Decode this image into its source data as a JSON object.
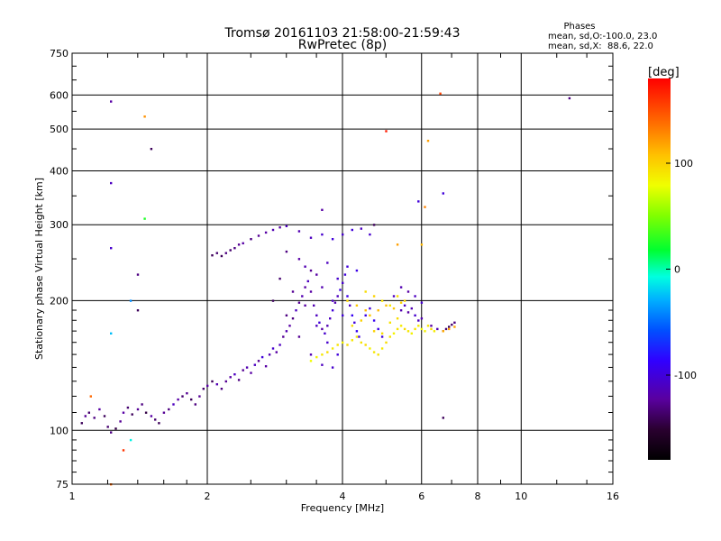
{
  "chart_data": {
    "type": "scatter",
    "title": "Tromsø 20161103 21:58:00-21:59:43",
    "subtitle": "RwPretec (8p)",
    "xlabel": "Frequency [MHz]",
    "ylabel": "Stationary phase Virtual Height [km]",
    "x_scale": "log",
    "y_scale": "log",
    "xlim": [
      1,
      16
    ],
    "ylim": [
      75,
      750
    ],
    "x_ticks": [
      1,
      2,
      4,
      6,
      8,
      10,
      16
    ],
    "y_ticks": [
      75,
      100,
      200,
      300,
      400,
      500,
      600,
      750
    ],
    "grid": true,
    "phases": {
      "header": "Phases",
      "line1": "mean, sd,O:-100.0, 23.0",
      "line2": "mean, sd,X:  88.6, 22.0"
    },
    "colorbar": {
      "label": "[deg]",
      "range": [
        -180,
        180
      ],
      "ticks": [
        100,
        0,
        -100
      ],
      "colormap": "rainbow (black-purple-blue-cyan-green-yellow-red)"
    },
    "series": [
      {
        "trace": "O-mode (blue/purple)",
        "points": [
          [
            1.05,
            104,
            -140
          ],
          [
            1.07,
            108,
            -125
          ],
          [
            1.09,
            110,
            -135
          ],
          [
            1.12,
            107,
            -130
          ],
          [
            1.15,
            112,
            -120
          ],
          [
            1.18,
            108,
            -140
          ],
          [
            1.2,
            102,
            -135
          ],
          [
            1.22,
            99,
            -130
          ],
          [
            1.25,
            101,
            -145
          ],
          [
            1.28,
            105,
            -125
          ],
          [
            1.3,
            110,
            -120
          ],
          [
            1.33,
            113,
            -135
          ],
          [
            1.36,
            109,
            -140
          ],
          [
            1.4,
            112,
            -125
          ],
          [
            1.43,
            115,
            -130
          ],
          [
            1.46,
            110,
            -145
          ],
          [
            1.5,
            108,
            -120
          ],
          [
            1.53,
            106,
            -135
          ],
          [
            1.56,
            104,
            -140
          ],
          [
            1.6,
            110,
            -125
          ],
          [
            1.64,
            112,
            -130
          ],
          [
            1.68,
            115,
            -110
          ],
          [
            1.72,
            118,
            -120
          ],
          [
            1.76,
            120,
            -135
          ],
          [
            1.8,
            122,
            -125
          ],
          [
            1.84,
            118,
            -140
          ],
          [
            1.88,
            115,
            -130
          ],
          [
            1.92,
            120,
            -125
          ],
          [
            1.96,
            125,
            -135
          ],
          [
            2.0,
            127,
            -120
          ],
          [
            2.05,
            130,
            -140
          ],
          [
            2.1,
            128,
            -115
          ],
          [
            2.15,
            125,
            -130
          ],
          [
            2.2,
            130,
            -125
          ],
          [
            2.25,
            133,
            -120
          ],
          [
            2.3,
            135,
            -110
          ],
          [
            2.35,
            131,
            -130
          ],
          [
            2.4,
            138,
            -125
          ],
          [
            2.45,
            140,
            -115
          ],
          [
            2.5,
            136,
            -120
          ],
          [
            2.55,
            142,
            -110
          ],
          [
            2.6,
            145,
            -125
          ],
          [
            2.65,
            148,
            -100
          ],
          [
            2.7,
            141,
            -120
          ],
          [
            2.75,
            150,
            -115
          ],
          [
            2.8,
            155,
            -105
          ],
          [
            2.85,
            152,
            -120
          ],
          [
            2.9,
            158,
            -110
          ],
          [
            2.95,
            165,
            -125
          ],
          [
            3.0,
            170,
            -115
          ],
          [
            3.05,
            175,
            -120
          ],
          [
            3.1,
            182,
            -130
          ],
          [
            3.15,
            190,
            -110
          ],
          [
            3.2,
            198,
            -125
          ],
          [
            3.25,
            205,
            -115
          ],
          [
            3.3,
            215,
            -120
          ],
          [
            3.35,
            222,
            -110
          ],
          [
            3.4,
            210,
            -120
          ],
          [
            3.45,
            195,
            -115
          ],
          [
            3.5,
            185,
            -110
          ],
          [
            3.55,
            178,
            -100
          ],
          [
            3.6,
            172,
            -120
          ],
          [
            3.65,
            168,
            -105
          ],
          [
            3.7,
            175,
            -115
          ],
          [
            3.75,
            182,
            -110
          ],
          [
            3.8,
            190,
            -100
          ],
          [
            3.85,
            198,
            -115
          ],
          [
            3.9,
            205,
            -110
          ],
          [
            3.95,
            212,
            -95
          ],
          [
            4.0,
            220,
            -105
          ],
          [
            4.05,
            230,
            -100
          ],
          [
            4.1,
            205,
            -95
          ],
          [
            4.15,
            195,
            -110
          ],
          [
            4.2,
            185,
            -90
          ],
          [
            4.25,
            178,
            -100
          ],
          [
            4.3,
            170,
            -90
          ],
          [
            4.35,
            165,
            -100
          ],
          [
            3.3,
            240,
            -115
          ],
          [
            3.5,
            230,
            -120
          ],
          [
            3.7,
            245,
            -110
          ],
          [
            3.9,
            225,
            -105
          ],
          [
            4.1,
            240,
            -100
          ],
          [
            4.3,
            235,
            -95
          ],
          [
            3.0,
            260,
            -130
          ],
          [
            3.2,
            250,
            -120
          ],
          [
            3.4,
            235,
            -125
          ],
          [
            3.6,
            215,
            -115
          ],
          [
            3.8,
            200,
            -110
          ],
          [
            4.0,
            185,
            -100
          ],
          [
            2.9,
            225,
            -135
          ],
          [
            3.1,
            210,
            -125
          ],
          [
            3.3,
            195,
            -120
          ],
          [
            3.5,
            175,
            -110
          ],
          [
            3.7,
            160,
            -105
          ],
          [
            3.9,
            150,
            -100
          ],
          [
            2.8,
            200,
            -140
          ],
          [
            3.0,
            185,
            -130
          ],
          [
            3.2,
            165,
            -125
          ],
          [
            3.4,
            150,
            -115
          ],
          [
            3.6,
            142,
            -110
          ],
          [
            3.8,
            140,
            -105
          ],
          [
            2.05,
            255,
            -140
          ],
          [
            2.1,
            258,
            -135
          ],
          [
            2.15,
            254,
            -140
          ],
          [
            2.2,
            258,
            -130
          ],
          [
            2.25,
            262,
            -135
          ],
          [
            2.3,
            265,
            -130
          ],
          [
            2.35,
            270,
            -125
          ],
          [
            2.4,
            272,
            -120
          ],
          [
            2.5,
            278,
            -130
          ],
          [
            2.6,
            283,
            -125
          ],
          [
            2.7,
            288,
            -120
          ],
          [
            2.8,
            292,
            -115
          ],
          [
            2.9,
            296,
            -120
          ],
          [
            3.0,
            298,
            -110
          ],
          [
            3.2,
            290,
            -115
          ],
          [
            3.4,
            280,
            -110
          ],
          [
            3.6,
            285,
            -105
          ],
          [
            3.8,
            278,
            -100
          ],
          [
            4.0,
            285,
            -105
          ],
          [
            4.2,
            292,
            -100
          ],
          [
            4.4,
            294,
            -110
          ],
          [
            4.6,
            285,
            -105
          ],
          [
            4.5,
            185,
            -95
          ],
          [
            4.6,
            192,
            -100
          ],
          [
            4.7,
            180,
            -90
          ],
          [
            4.8,
            172,
            -95
          ],
          [
            4.9,
            165,
            -100
          ],
          [
            5.4,
            190,
            -115
          ],
          [
            5.5,
            195,
            -110
          ],
          [
            5.6,
            188,
            -120
          ],
          [
            5.7,
            192,
            -115
          ],
          [
            5.8,
            185,
            -105
          ],
          [
            5.9,
            180,
            -110
          ],
          [
            6.0,
            182,
            -115
          ],
          [
            5.2,
            205,
            -110
          ],
          [
            5.4,
            215,
            -115
          ],
          [
            5.6,
            210,
            -120
          ],
          [
            5.8,
            205,
            -110
          ],
          [
            6.0,
            198,
            -105
          ],
          [
            6.3,
            175,
            -120
          ],
          [
            6.5,
            172,
            -115
          ],
          [
            6.7,
            170,
            -125
          ],
          [
            6.8,
            172,
            -135
          ],
          [
            6.9,
            174,
            -140
          ],
          [
            7.0,
            176,
            -135
          ],
          [
            7.1,
            178,
            -130
          ]
        ]
      },
      {
        "trace": "X-mode (yellow/orange)",
        "points": [
          [
            3.4,
            145,
            80
          ],
          [
            3.5,
            148,
            85
          ],
          [
            3.6,
            150,
            90
          ],
          [
            3.7,
            152,
            95
          ],
          [
            3.8,
            155,
            88
          ],
          [
            3.9,
            158,
            92
          ],
          [
            4.0,
            160,
            85
          ],
          [
            4.1,
            158,
            95
          ],
          [
            4.2,
            162,
            90
          ],
          [
            4.3,
            165,
            88
          ],
          [
            4.4,
            160,
            92
          ],
          [
            4.5,
            158,
            95
          ],
          [
            4.6,
            155,
            85
          ],
          [
            4.7,
            152,
            90
          ],
          [
            4.8,
            150,
            92
          ],
          [
            4.9,
            155,
            88
          ],
          [
            5.0,
            160,
            95
          ],
          [
            5.1,
            165,
            90
          ],
          [
            5.2,
            168,
            85
          ],
          [
            5.3,
            172,
            92
          ],
          [
            5.4,
            175,
            88
          ],
          [
            5.5,
            172,
            95
          ],
          [
            5.6,
            170,
            90
          ],
          [
            5.7,
            168,
            85
          ],
          [
            5.8,
            172,
            92
          ],
          [
            5.9,
            175,
            88
          ],
          [
            6.0,
            172,
            80
          ],
          [
            6.1,
            170,
            85
          ],
          [
            6.2,
            175,
            90
          ],
          [
            6.3,
            172,
            95
          ],
          [
            6.4,
            170,
            88
          ],
          [
            4.2,
            175,
            95
          ],
          [
            4.4,
            180,
            100
          ],
          [
            4.6,
            185,
            105
          ],
          [
            4.8,
            190,
            110
          ],
          [
            5.0,
            195,
            108
          ],
          [
            5.2,
            192,
            105
          ],
          [
            5.4,
            198,
            100
          ],
          [
            4.5,
            210,
            95
          ],
          [
            4.7,
            205,
            100
          ],
          [
            4.9,
            200,
            92
          ],
          [
            5.1,
            195,
            90
          ],
          [
            5.3,
            205,
            95
          ],
          [
            5.5,
            200,
            100
          ],
          [
            4.1,
            200,
            100
          ],
          [
            4.3,
            195,
            105
          ],
          [
            4.5,
            190,
            110
          ],
          [
            4.7,
            170,
            100
          ],
          [
            4.9,
            168,
            95
          ],
          [
            5.1,
            178,
            92
          ],
          [
            5.3,
            182,
            95
          ],
          [
            6.7,
            170,
            115
          ],
          [
            6.9,
            172,
            120
          ],
          [
            7.1,
            174,
            118
          ]
        ]
      },
      {
        "trace": "scattered outliers",
        "points": [
          [
            1.22,
            580,
            -120
          ],
          [
            1.22,
            375,
            -110
          ],
          [
            1.22,
            265,
            -105
          ],
          [
            1.22,
            168,
            -25
          ],
          [
            1.22,
            75,
            140
          ],
          [
            1.45,
            535,
            125
          ],
          [
            1.45,
            310,
            25
          ],
          [
            1.5,
            450,
            -140
          ],
          [
            1.4,
            230,
            -130
          ],
          [
            1.4,
            190,
            -140
          ],
          [
            1.35,
            200,
            -40
          ],
          [
            1.1,
            120,
            140
          ],
          [
            1.3,
            90,
            160
          ],
          [
            1.35,
            95,
            -10
          ],
          [
            3.6,
            325,
            -120
          ],
          [
            5.9,
            340,
            -100
          ],
          [
            6.2,
            470,
            120
          ],
          [
            6.6,
            605,
            155
          ],
          [
            6.7,
            355,
            -100
          ],
          [
            6.7,
            107,
            -140
          ],
          [
            6.1,
            330,
            130
          ],
          [
            5.0,
            495,
            170
          ],
          [
            5.3,
            270,
            120
          ],
          [
            12.8,
            590,
            -130
          ],
          [
            6.0,
            270,
            110
          ],
          [
            4.7,
            300,
            -140
          ]
        ]
      }
    ]
  }
}
